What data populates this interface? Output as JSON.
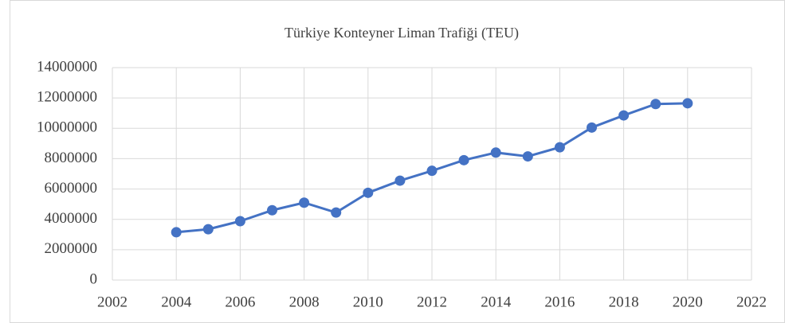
{
  "chart_data": {
    "type": "line",
    "title": "Türkiye Konteyner Liman Trafiği (TEU)",
    "x": [
      2004,
      2005,
      2006,
      2007,
      2008,
      2009,
      2010,
      2011,
      2012,
      2013,
      2014,
      2015,
      2016,
      2017,
      2018,
      2019,
      2020
    ],
    "values": [
      3150000,
      3350000,
      3880000,
      4600000,
      5100000,
      4450000,
      5750000,
      6550000,
      7200000,
      7900000,
      8400000,
      8150000,
      8750000,
      10050000,
      10850000,
      11600000,
      11650000
    ],
    "color": "#4472c4",
    "xlim": [
      2002,
      2022
    ],
    "xticks": [
      2002,
      2004,
      2006,
      2008,
      2010,
      2012,
      2014,
      2016,
      2018,
      2020,
      2022
    ],
    "ylim": [
      0,
      14000000
    ],
    "yticks": [
      0,
      2000000,
      4000000,
      6000000,
      8000000,
      10000000,
      12000000,
      14000000
    ],
    "grid": true
  }
}
